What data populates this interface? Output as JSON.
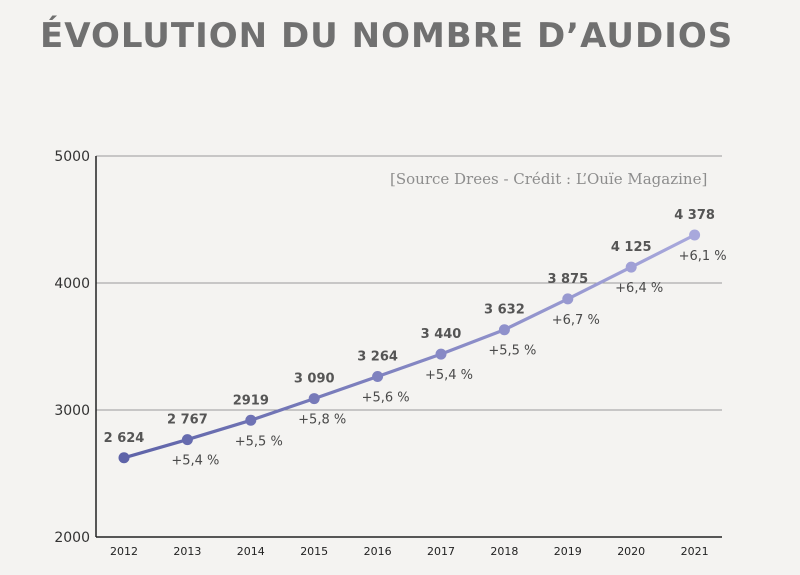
{
  "title": "ÉVOLUTION DU NOMBRE D’AUDIOS",
  "source_note": "[Source Drees - Crédit : L’Ouïe Magazine]",
  "colors": {
    "line_start": "#5e63a8",
    "line_end": "#a8a8dc",
    "grid": "#9a9a9a",
    "axis": "#222222"
  },
  "chart_data": {
    "type": "line",
    "title": "ÉVOLUTION DU NOMBRE D’AUDIOS",
    "xlabel": "",
    "ylabel": "",
    "ylim": [
      2000,
      5000
    ],
    "y_ticks": [
      2000,
      3000,
      4000,
      5000
    ],
    "grid": "horizontal",
    "categories": [
      "2012",
      "2013",
      "2014",
      "2015",
      "2016",
      "2017",
      "2018",
      "2019",
      "2020",
      "2021"
    ],
    "values": [
      2624,
      2767,
      2919,
      3090,
      3264,
      3440,
      3632,
      3875,
      4125,
      4378
    ],
    "value_labels": [
      "2 624",
      "2 767",
      "2919",
      "3 090",
      "3 264",
      "3 440",
      "3 632",
      "3 875",
      "4 125",
      "4 378"
    ],
    "growth_labels": [
      "",
      "+5,4 %",
      "+5,5 %",
      "+5,8 %",
      "+5,6 %",
      "+5,4 %",
      "+5,5 %",
      "+6,7 %",
      "+6,4 %",
      "+6,1 %"
    ]
  }
}
